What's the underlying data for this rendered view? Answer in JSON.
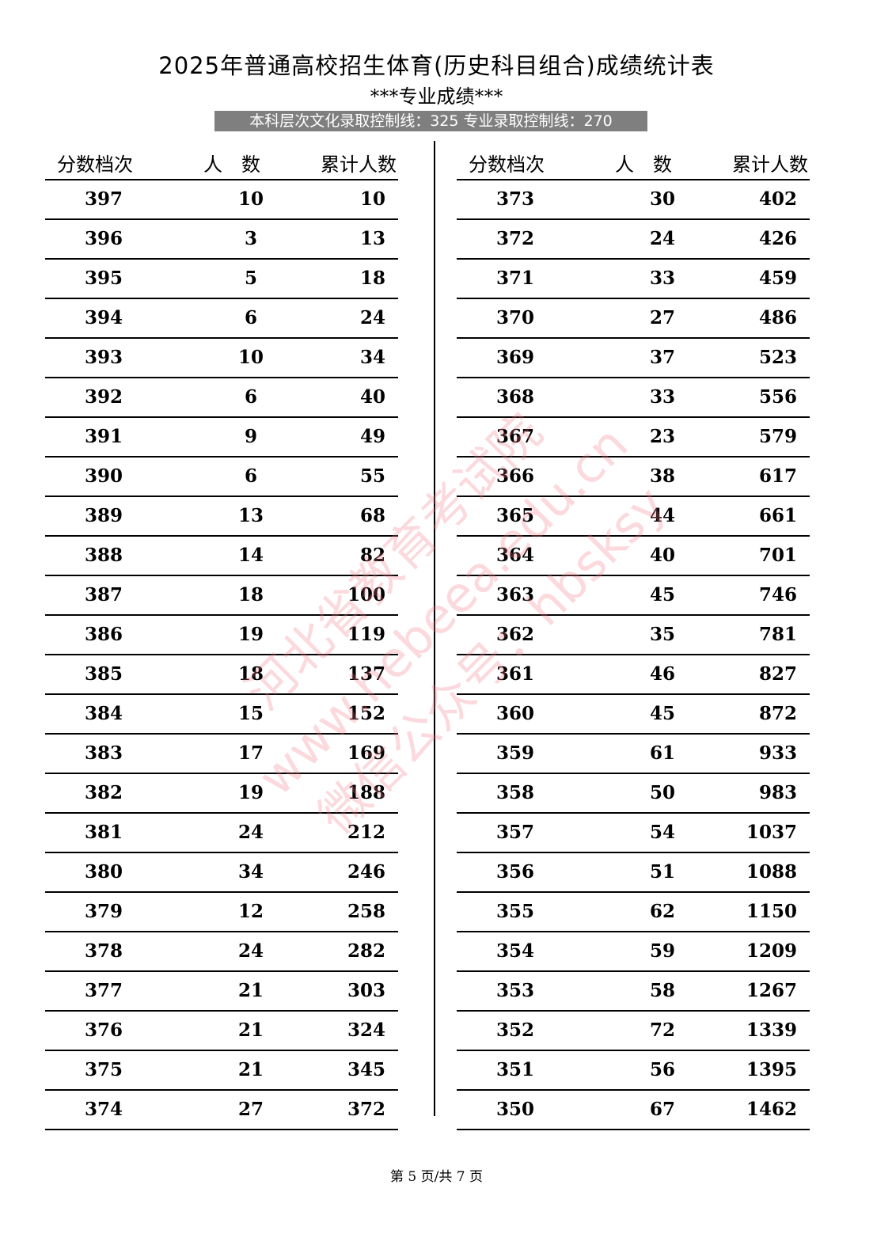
{
  "title": "2025年普通高校招生体育(历史科目组合)成绩统计表",
  "subtitle": "***专业成绩***",
  "banner": "本科层次文化录取控制线：325  专业录取控制线：270",
  "headers": {
    "score": "分数档次",
    "count": "人　数",
    "cumulative": "累计人数"
  },
  "left_rows": [
    [
      "397",
      "10",
      "10"
    ],
    [
      "396",
      "3",
      "13"
    ],
    [
      "395",
      "5",
      "18"
    ],
    [
      "394",
      "6",
      "24"
    ],
    [
      "393",
      "10",
      "34"
    ],
    [
      "392",
      "6",
      "40"
    ],
    [
      "391",
      "9",
      "49"
    ],
    [
      "390",
      "6",
      "55"
    ],
    [
      "389",
      "13",
      "68"
    ],
    [
      "388",
      "14",
      "82"
    ],
    [
      "387",
      "18",
      "100"
    ],
    [
      "386",
      "19",
      "119"
    ],
    [
      "385",
      "18",
      "137"
    ],
    [
      "384",
      "15",
      "152"
    ],
    [
      "383",
      "17",
      "169"
    ],
    [
      "382",
      "19",
      "188"
    ],
    [
      "381",
      "24",
      "212"
    ],
    [
      "380",
      "34",
      "246"
    ],
    [
      "379",
      "12",
      "258"
    ],
    [
      "378",
      "24",
      "282"
    ],
    [
      "377",
      "21",
      "303"
    ],
    [
      "376",
      "21",
      "324"
    ],
    [
      "375",
      "21",
      "345"
    ],
    [
      "374",
      "27",
      "372"
    ]
  ],
  "right_rows": [
    [
      "373",
      "30",
      "402"
    ],
    [
      "372",
      "24",
      "426"
    ],
    [
      "371",
      "33",
      "459"
    ],
    [
      "370",
      "27",
      "486"
    ],
    [
      "369",
      "37",
      "523"
    ],
    [
      "368",
      "33",
      "556"
    ],
    [
      "367",
      "23",
      "579"
    ],
    [
      "366",
      "38",
      "617"
    ],
    [
      "365",
      "44",
      "661"
    ],
    [
      "364",
      "40",
      "701"
    ],
    [
      "363",
      "45",
      "746"
    ],
    [
      "362",
      "35",
      "781"
    ],
    [
      "361",
      "46",
      "827"
    ],
    [
      "360",
      "45",
      "872"
    ],
    [
      "359",
      "61",
      "933"
    ],
    [
      "358",
      "50",
      "983"
    ],
    [
      "357",
      "54",
      "1037"
    ],
    [
      "356",
      "51",
      "1088"
    ],
    [
      "355",
      "62",
      "1150"
    ],
    [
      "354",
      "59",
      "1209"
    ],
    [
      "353",
      "58",
      "1267"
    ],
    [
      "352",
      "72",
      "1339"
    ],
    [
      "351",
      "56",
      "1395"
    ],
    [
      "350",
      "67",
      "1462"
    ]
  ],
  "watermark": [
    "河北省教育考试院",
    "www.hebeea.edu.cn",
    "微信公众号：hbsksy"
  ],
  "footer": "第 5 页/共 7 页",
  "colors": {
    "banner_bg": "#7f7f7f",
    "watermark": "#f07882"
  }
}
